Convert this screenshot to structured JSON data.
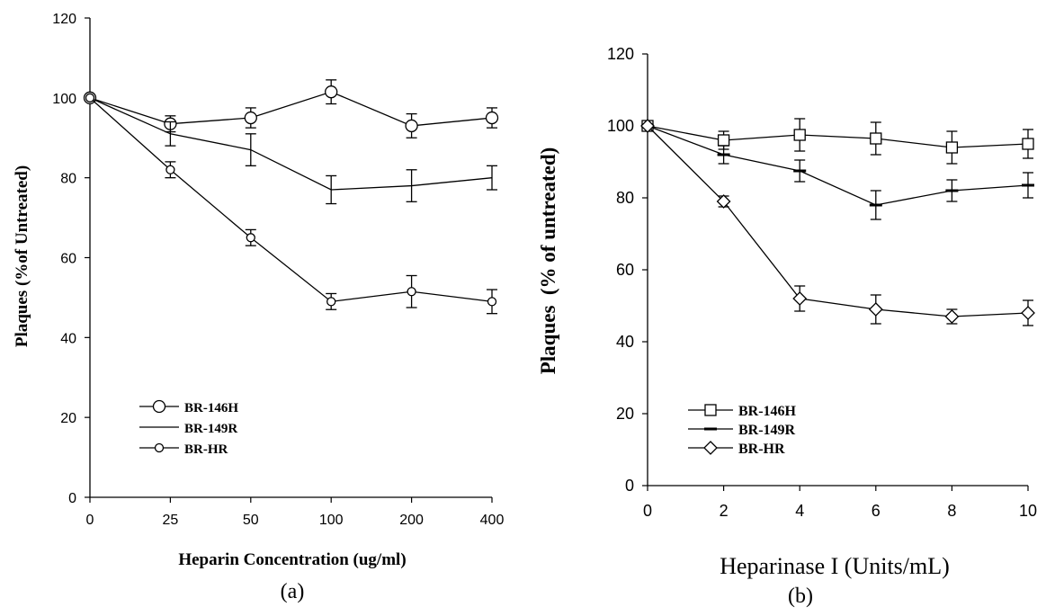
{
  "chart_data": [
    {
      "type": "line",
      "panel_label": "(a)",
      "xlabel": "Heparin Concentration (ug/ml)",
      "ylabel": "Plaques (%of Untreated)",
      "x_ticks": [
        "0",
        "25",
        "50",
        "100",
        "200",
        "400"
      ],
      "y_ticks": [
        "0",
        "20",
        "40",
        "60",
        "80",
        "100",
        "120"
      ],
      "ylim": [
        0,
        120
      ],
      "x_scale": "categorical",
      "series": [
        {
          "name": "BR-146H",
          "marker": "circle",
          "values": [
            100,
            93.5,
            95,
            101.5,
            93,
            95
          ],
          "errors": [
            0,
            2,
            2.5,
            3,
            3,
            2.5
          ]
        },
        {
          "name": "BR-149R",
          "marker": "none",
          "values": [
            100,
            91,
            87,
            77,
            78,
            80
          ],
          "errors": [
            0,
            3,
            4,
            3.5,
            4,
            3
          ]
        },
        {
          "name": "BR-HR",
          "marker": "small-circle",
          "values": [
            100,
            82,
            65,
            49,
            51.5,
            49
          ],
          "errors": [
            0,
            2,
            2,
            2,
            4,
            3
          ]
        }
      ],
      "legend_position": "bottom-left"
    },
    {
      "type": "line",
      "panel_label": "(b)",
      "xlabel": "Heparinase I (Units/mL)",
      "ylabel": "Plaques  (% of untreated)",
      "x_ticks": [
        "0",
        "2",
        "4",
        "6",
        "8",
        "10"
      ],
      "y_ticks": [
        "0",
        "20",
        "40",
        "60",
        "80",
        "100",
        "120"
      ],
      "xlim": [
        0,
        10
      ],
      "ylim": [
        0,
        120
      ],
      "series": [
        {
          "name": "BR-146H",
          "marker": "square",
          "x": [
            0,
            2,
            4,
            6,
            8,
            10
          ],
          "values": [
            100,
            96,
            97.5,
            96.5,
            94,
            95
          ],
          "errors": [
            0,
            2.5,
            4.5,
            4.5,
            4.5,
            4
          ]
        },
        {
          "name": "BR-149R",
          "marker": "dash",
          "x": [
            0,
            2,
            4,
            6,
            8,
            10
          ],
          "values": [
            100,
            92,
            87.5,
            78,
            82,
            83.5
          ],
          "errors": [
            0,
            2.5,
            3,
            4,
            3,
            3.5
          ]
        },
        {
          "name": "BR-HR",
          "marker": "diamond",
          "x": [
            0,
            2,
            4,
            6,
            8,
            10
          ],
          "values": [
            100,
            79,
            52,
            49,
            47,
            48
          ],
          "errors": [
            0,
            1.5,
            3.5,
            4,
            2,
            3.5
          ]
        }
      ],
      "legend_position": "bottom-left"
    }
  ]
}
